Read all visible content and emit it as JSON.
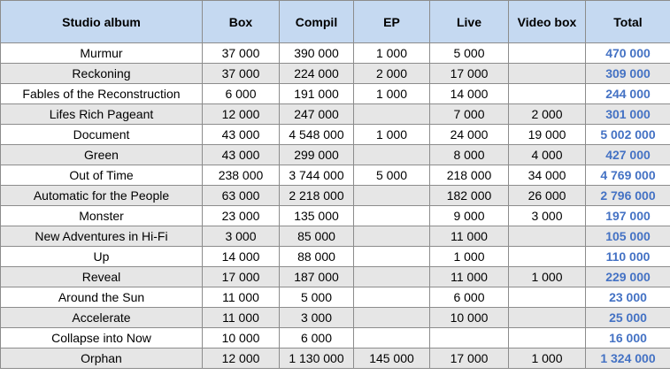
{
  "colors": {
    "header_bg": "#c5d9f1",
    "row_alt_bg": "#e6e6e6",
    "row_bg": "#ffffff",
    "total_text": "#4472c4",
    "grid": "#8c8c8c"
  },
  "table": {
    "headers": [
      "Studio album",
      "Box",
      "Compil",
      "EP",
      "Live",
      "Video box",
      "Total"
    ],
    "rows": [
      [
        "Murmur",
        "37 000",
        "390 000",
        "1 000",
        "5 000",
        "",
        "470 000"
      ],
      [
        "Reckoning",
        "37 000",
        "224 000",
        "2 000",
        "17 000",
        "",
        "309 000"
      ],
      [
        "Fables of the Reconstruction",
        "6 000",
        "191 000",
        "1 000",
        "14 000",
        "",
        "244 000"
      ],
      [
        "Lifes Rich Pageant",
        "12 000",
        "247 000",
        "",
        "7 000",
        "2 000",
        "301 000"
      ],
      [
        "Document",
        "43 000",
        "4 548 000",
        "1 000",
        "24 000",
        "19 000",
        "5 002 000"
      ],
      [
        "Green",
        "43 000",
        "299 000",
        "",
        "8 000",
        "4 000",
        "427 000"
      ],
      [
        "Out of Time",
        "238 000",
        "3 744 000",
        "5 000",
        "218 000",
        "34 000",
        "4 769 000"
      ],
      [
        "Automatic for the People",
        "63 000",
        "2 218 000",
        "",
        "182 000",
        "26 000",
        "2 796 000"
      ],
      [
        "Monster",
        "23 000",
        "135 000",
        "",
        "9 000",
        "3 000",
        "197 000"
      ],
      [
        "New Adventures in Hi-Fi",
        "3 000",
        "85 000",
        "",
        "11 000",
        "",
        "105 000"
      ],
      [
        "Up",
        "14 000",
        "88 000",
        "",
        "1 000",
        "",
        "110 000"
      ],
      [
        "Reveal",
        "17 000",
        "187 000",
        "",
        "11 000",
        "1 000",
        "229 000"
      ],
      [
        "Around the Sun",
        "11 000",
        "5 000",
        "",
        "6 000",
        "",
        "23 000"
      ],
      [
        "Accelerate",
        "11 000",
        "3 000",
        "",
        "10 000",
        "",
        "25 000"
      ],
      [
        "Collapse into Now",
        "10 000",
        "6 000",
        "",
        "",
        "",
        "16 000"
      ],
      [
        "Orphan",
        "12 000",
        "1 130 000",
        "145 000",
        "17 000",
        "1 000",
        "1 324 000"
      ]
    ]
  }
}
